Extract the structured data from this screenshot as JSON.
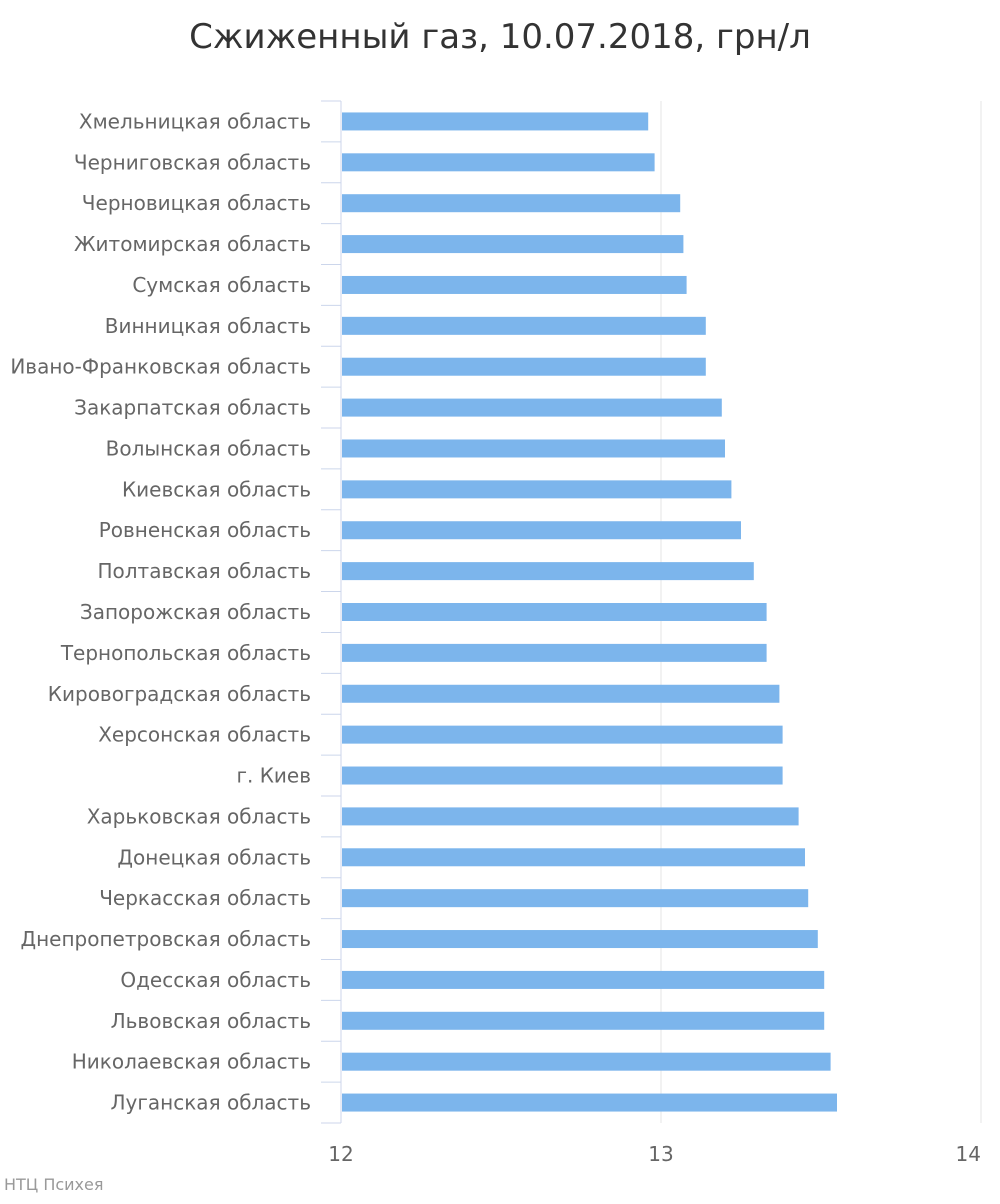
{
  "chart_data": {
    "type": "bar",
    "orientation": "horizontal",
    "title": "Сжиженный газ, 10.07.2018, грн/л",
    "xlabel": "",
    "ylabel": "",
    "xlim": [
      12,
      14
    ],
    "xticks": [
      "12",
      "13",
      "14"
    ],
    "grid": true,
    "bar_color": "#7cb5ec",
    "categories": [
      "Хмельницкая область",
      "Черниговская область",
      "Черновицкая область",
      "Житомирская область",
      "Сумская область",
      "Винницкая область",
      "Ивано-Франковская область",
      "Закарпатская область",
      "Волынская область",
      "Киевская область",
      "Ровненская область",
      "Полтавская область",
      "Запорожская область",
      "Тернопольская область",
      "Кировоградская область",
      "Херсонская область",
      "г. Киев",
      "Харьковская область",
      "Донецкая область",
      "Черкасская область",
      "Днепропетровская область",
      "Одесская область",
      "Львовская область",
      "Николаевская область",
      "Луганская область"
    ],
    "values": [
      12.96,
      12.98,
      13.06,
      13.07,
      13.08,
      13.14,
      13.14,
      13.19,
      13.2,
      13.22,
      13.25,
      13.29,
      13.33,
      13.33,
      13.37,
      13.38,
      13.38,
      13.43,
      13.45,
      13.46,
      13.49,
      13.51,
      13.51,
      13.53,
      13.55
    ]
  },
  "credits": "НТЦ Психея"
}
